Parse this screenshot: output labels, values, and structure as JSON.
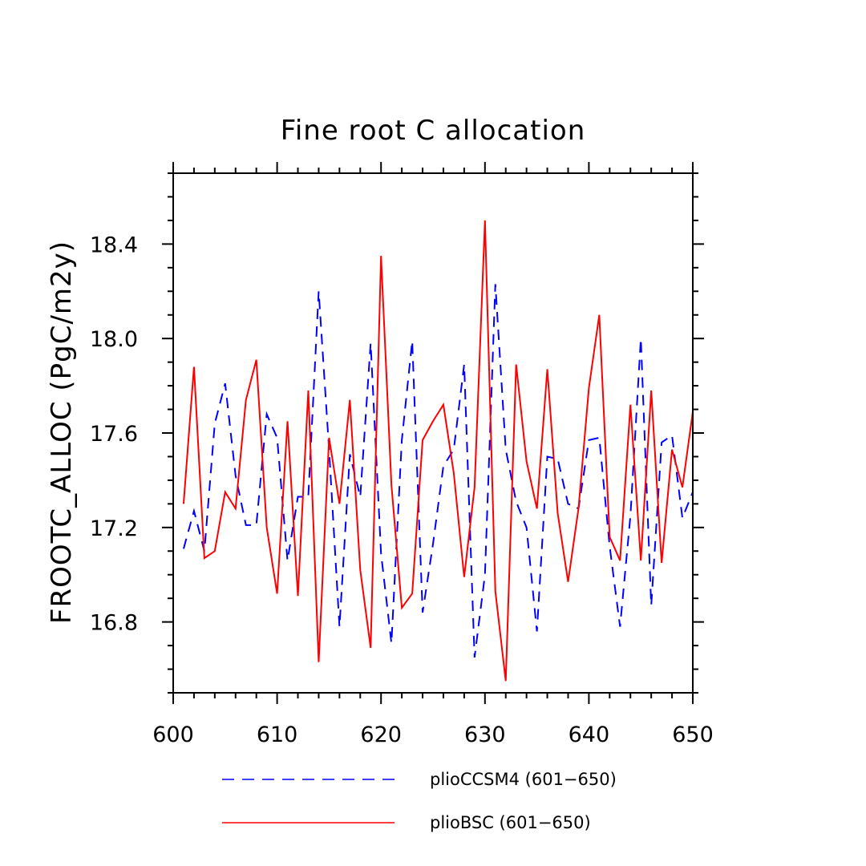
{
  "chart_data": {
    "type": "line",
    "title": "Fine root C allocation",
    "xlabel": "",
    "ylabel": "FROOTC_ALLOC  (PgC/m2y)",
    "xlim": [
      600,
      650
    ],
    "ylim": [
      16.5,
      18.7
    ],
    "x_ticks": [
      "600",
      "610",
      "620",
      "630",
      "640",
      "650"
    ],
    "y_ticks": [
      "16.8",
      "17.2",
      "17.6",
      "18.0",
      "18.4"
    ],
    "grid": false,
    "legend_position": "bottom",
    "x": [
      601,
      602,
      603,
      604,
      605,
      606,
      607,
      608,
      609,
      610,
      611,
      612,
      613,
      614,
      615,
      616,
      617,
      618,
      619,
      620,
      621,
      622,
      623,
      624,
      625,
      626,
      627,
      628,
      629,
      630,
      631,
      632,
      633,
      634,
      635,
      636,
      637,
      638,
      639,
      640,
      641,
      642,
      643,
      644,
      645,
      646,
      647,
      648,
      649,
      650
    ],
    "series": [
      {
        "name": "plioCCSM4 (601−650)",
        "color": "#0000ff",
        "dash": "dashed",
        "values": [
          17.11,
          17.27,
          17.1,
          17.64,
          17.81,
          17.42,
          17.21,
          17.21,
          17.68,
          17.58,
          17.06,
          17.33,
          17.33,
          18.2,
          17.53,
          16.78,
          17.51,
          17.33,
          17.98,
          17.09,
          16.71,
          17.57,
          17.99,
          16.84,
          17.13,
          17.46,
          17.53,
          17.89,
          16.65,
          17.0,
          18.23,
          17.53,
          17.31,
          17.2,
          16.76,
          17.5,
          17.49,
          17.3,
          17.28,
          17.57,
          17.58,
          17.12,
          16.78,
          17.25,
          18.0,
          16.87,
          17.56,
          17.59,
          17.24,
          17.35
        ]
      },
      {
        "name": "plioBSC (601−650)",
        "color": "#ff0000",
        "dash": "solid",
        "values": [
          17.3,
          17.88,
          17.07,
          17.1,
          17.35,
          17.28,
          17.74,
          17.91,
          17.2,
          16.92,
          17.65,
          16.91,
          17.78,
          16.63,
          17.58,
          17.3,
          17.74,
          17.02,
          16.69,
          18.35,
          17.38,
          16.86,
          16.92,
          17.57,
          17.65,
          17.72,
          17.43,
          16.99,
          17.37,
          18.5,
          16.93,
          16.55,
          17.89,
          17.48,
          17.28,
          17.87,
          17.26,
          16.97,
          17.28,
          17.79,
          18.1,
          17.16,
          17.06,
          17.72,
          17.06,
          17.78,
          17.05,
          17.53,
          17.37,
          17.69
        ]
      }
    ]
  }
}
